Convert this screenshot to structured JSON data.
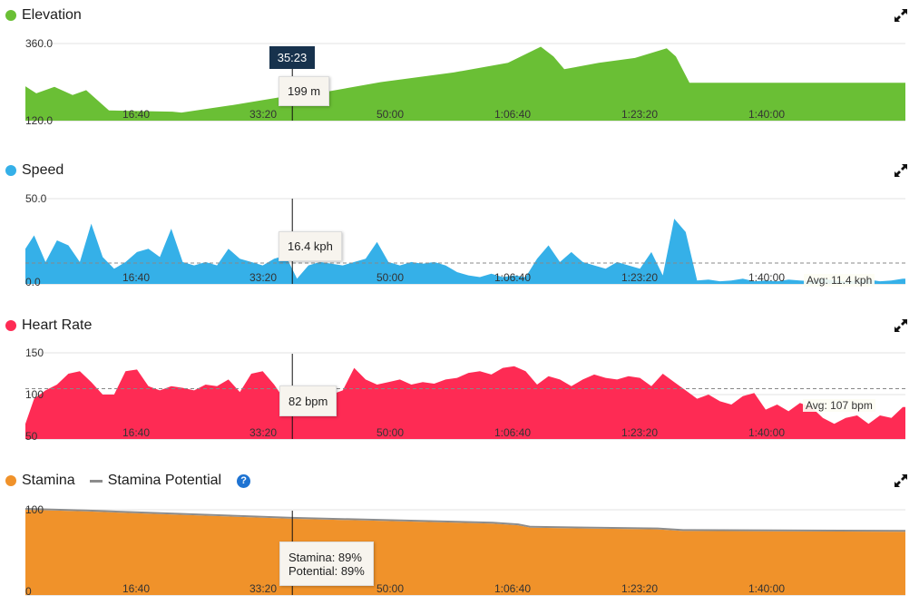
{
  "colors": {
    "elevation": "#6abf35",
    "speed": "#35b0e8",
    "heart_rate": "#fe2b54",
    "stamina": "#f0922a",
    "potential": "#8c8c8c",
    "help": "#1e73d2",
    "cursor_time_bg": "#17324d"
  },
  "icons": {
    "expand": "expand-arrows-icon",
    "help": "question-mark-icon"
  },
  "cursor": {
    "time_label": "35:23",
    "time_seconds": 2123
  },
  "chart_data": [
    {
      "id": "elevation",
      "type": "area",
      "title": "Elevation",
      "ylim": [
        120,
        360
      ],
      "ytick_labels": [
        "360.0",
        "120.0"
      ],
      "x_tick_seconds": [
        1000,
        2000,
        3000,
        4000,
        5000,
        6000
      ],
      "x_tick_labels": [
        "16:40",
        "33:20",
        "50:00",
        "1:06:40",
        "1:23:20",
        "1:40:00"
      ],
      "points": [
        [
          21,
          227
        ],
        [
          107,
          205
        ],
        [
          250,
          225
        ],
        [
          393,
          200
        ],
        [
          500,
          215
        ],
        [
          679,
          152
        ],
        [
          893,
          150
        ],
        [
          1179,
          148
        ],
        [
          1250,
          145
        ],
        [
          1679,
          170
        ],
        [
          2121,
          199
        ],
        [
          2393,
          210
        ],
        [
          2821,
          240
        ],
        [
          3393,
          270
        ],
        [
          3821,
          300
        ],
        [
          4079,
          350
        ],
        [
          4179,
          320
        ],
        [
          4264,
          280
        ],
        [
          4536,
          300
        ],
        [
          4821,
          315
        ],
        [
          5071,
          345
        ],
        [
          5143,
          320
        ],
        [
          5250,
          238
        ],
        [
          6950,
          238
        ]
      ],
      "tooltip": "199 m"
    },
    {
      "id": "speed",
      "type": "area",
      "title": "Speed",
      "ylim": [
        0,
        50
      ],
      "ytick_labels": [
        "50.0",
        "0.0"
      ],
      "x_tick_seconds": [
        1000,
        2000,
        3000,
        4000,
        5000,
        6000
      ],
      "x_tick_labels": [
        "16:40",
        "33:20",
        "50:00",
        "1:06:40",
        "1:23:20",
        "1:40:00"
      ],
      "step_seconds": 90,
      "values": [
        20,
        28,
        12,
        25,
        22,
        12,
        35,
        15,
        8,
        12,
        18,
        20,
        15,
        32,
        12,
        10,
        12,
        10,
        20,
        14,
        12,
        10,
        14,
        16,
        2,
        10,
        12,
        11,
        10,
        12,
        14,
        24,
        12,
        10,
        12,
        11,
        12,
        10,
        6,
        4,
        3,
        5,
        3,
        4,
        3,
        14,
        22,
        12,
        18,
        12,
        10,
        8,
        12,
        10,
        8,
        18,
        4,
        38,
        30,
        1,
        1.5,
        0.5,
        1,
        2,
        0.5,
        1,
        0.5,
        1.5,
        1,
        0.5,
        2,
        1,
        0.5,
        1,
        1.5,
        0.5,
        1,
        2
      ],
      "average": 11.4,
      "average_label": "Avg: 11.4 kph",
      "tooltip": "16.4 kph"
    },
    {
      "id": "heart_rate",
      "type": "area",
      "title": "Heart Rate",
      "ylim": [
        50,
        150
      ],
      "ytick_labels": [
        "150",
        "100",
        "50"
      ],
      "ytick_values": [
        150,
        100,
        50
      ],
      "x_tick_seconds": [
        1000,
        2000,
        3000,
        4000,
        5000,
        6000
      ],
      "x_tick_labels": [
        "16:40",
        "33:20",
        "50:00",
        "1:06:40",
        "1:23:20",
        "1:40:00"
      ],
      "step_seconds": 90,
      "values": [
        65,
        95,
        105,
        112,
        125,
        128,
        115,
        100,
        100,
        128,
        130,
        110,
        105,
        110,
        108,
        105,
        112,
        110,
        118,
        103,
        125,
        128,
        112,
        92,
        82,
        88,
        106,
        100,
        105,
        132,
        118,
        112,
        115,
        118,
        112,
        115,
        113,
        118,
        120,
        126,
        128,
        124,
        132,
        134,
        128,
        112,
        122,
        118,
        110,
        118,
        124,
        120,
        118,
        122,
        120,
        110,
        125,
        115,
        105,
        95,
        100,
        92,
        88,
        98,
        102,
        82,
        88,
        80,
        90,
        85,
        72,
        65,
        72,
        75,
        65,
        75,
        72,
        85
      ],
      "average": 107,
      "average_label": "Avg: 107 bpm",
      "tooltip": "82 bpm"
    },
    {
      "id": "stamina",
      "type": "area",
      "title": "Stamina",
      "legend_secondary": "Stamina Potential",
      "ylim": [
        0,
        100
      ],
      "ytick_labels": [
        "100",
        "0"
      ],
      "x_tick_seconds": [
        1000,
        2000,
        3000,
        4000,
        5000,
        6000
      ],
      "x_tick_labels": [
        "16:40",
        "33:20",
        "50:00",
        "1:06:40",
        "1:23:20",
        "1:40:00"
      ],
      "points": [
        [
          0,
          100
        ],
        [
          500,
          98
        ],
        [
          2121,
          89
        ],
        [
          3200,
          85
        ],
        [
          3700,
          83
        ],
        [
          3900,
          81
        ],
        [
          4000,
          78
        ],
        [
          5000,
          76
        ],
        [
          5200,
          74
        ],
        [
          6950,
          73
        ]
      ],
      "potential_points": [
        [
          0,
          100
        ],
        [
          500,
          98
        ],
        [
          2121,
          89
        ],
        [
          3200,
          85
        ],
        [
          3700,
          83
        ],
        [
          3900,
          81
        ],
        [
          4000,
          78
        ],
        [
          5000,
          76
        ],
        [
          5200,
          74
        ],
        [
          6950,
          73
        ]
      ],
      "tooltip_lines": [
        "Stamina: 89%",
        "Potential: 89%"
      ]
    }
  ]
}
